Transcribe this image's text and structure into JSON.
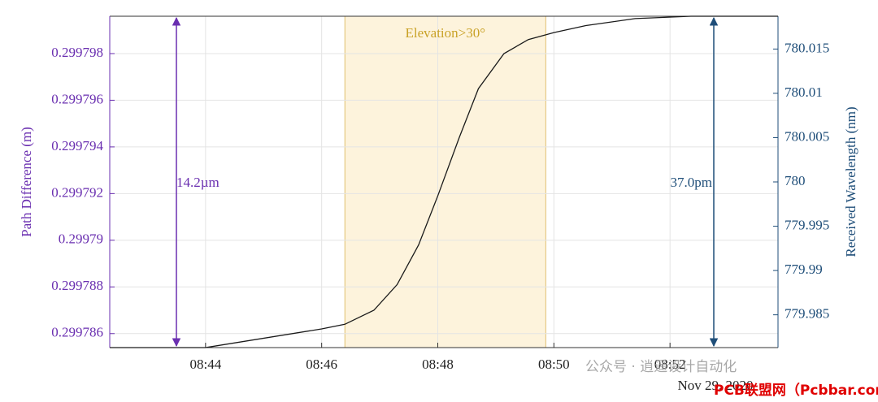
{
  "chart_data": {
    "type": "line",
    "x_unit_note_label": "Nov 29, 2020",
    "ylabel": "Path Difference (m)",
    "y2label": "Received Wavelength (nm)",
    "x": [
      42.35,
      44,
      46,
      46.4,
      46.9,
      47.3,
      47.67,
      48,
      48.37,
      48.7,
      49.14,
      49.56,
      50,
      50.55,
      51.4,
      52.36,
      53.86
    ],
    "series": [
      {
        "color": "#1a1a1a",
        "values": [
          0.2997854,
          0.2997854,
          0.2997862,
          0.2997864,
          0.299787,
          0.2997881,
          0.2997898,
          0.2997919,
          0.2997944,
          0.2997965,
          0.299798,
          0.2997986,
          0.2997989,
          0.2997992,
          0.2997995,
          0.2997996,
          0.2997996
        ]
      }
    ],
    "xlim": [
      42.35,
      53.86
    ],
    "xticks": [
      {
        "value": 44,
        "label": "08:44"
      },
      {
        "value": 46,
        "label": "08:46"
      },
      {
        "value": 48,
        "label": "08:48"
      },
      {
        "value": 50,
        "label": "08:50"
      },
      {
        "value": 52,
        "label": "08:52"
      }
    ],
    "ylim": [
      0.2997854,
      0.2997996
    ],
    "yticks": [
      0.299786,
      0.299788,
      0.29979,
      0.299792,
      0.299794,
      0.299796,
      0.299798
    ],
    "y2lim": [
      779.9813,
      780.0187
    ],
    "y2ticks": [
      779.985,
      779.99,
      779.995,
      780,
      780.005,
      780.01,
      780.015
    ],
    "y_color": "#6a2fb0",
    "y2_color": "#1f4e79",
    "grid": true,
    "highlight": {
      "label": "Elevation>30°",
      "xrange": [
        46.4,
        49.86
      ],
      "color": "#fdf3dc"
    },
    "annotations": [
      "14.2µm",
      "37.0pm"
    ],
    "watermarks": [
      "公众号 · 逍遥设计自动化",
      "PCB联盟网（Pcbbar.com）"
    ]
  }
}
